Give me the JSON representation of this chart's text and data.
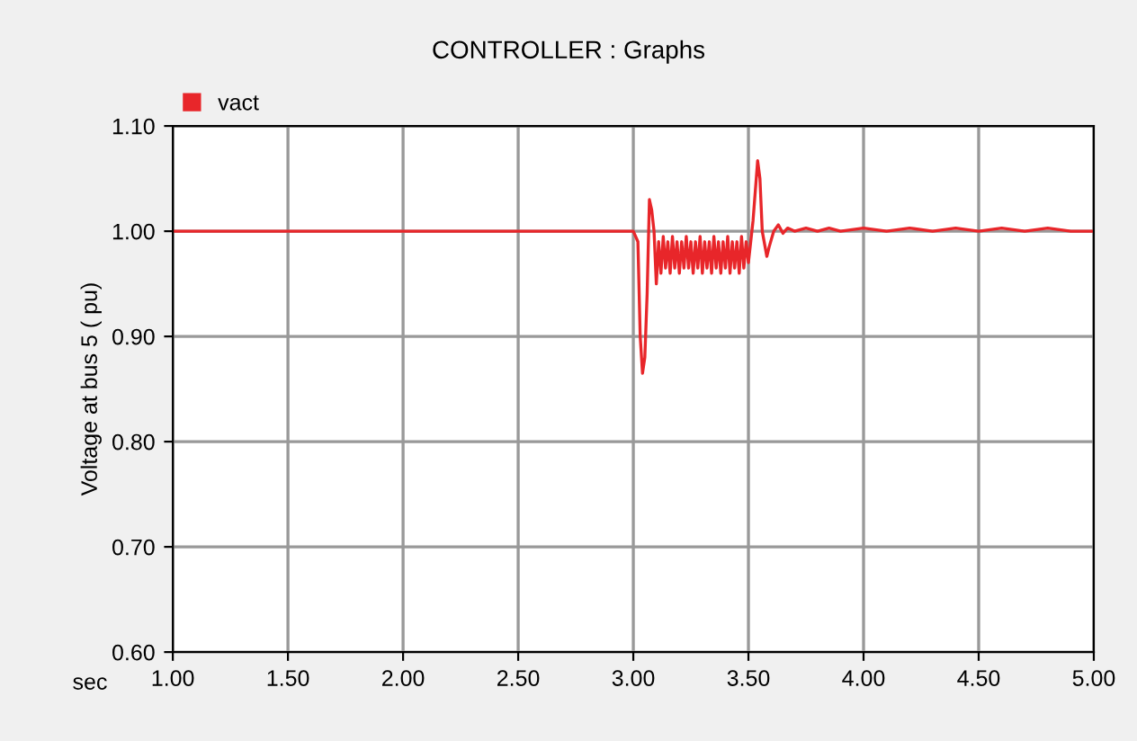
{
  "chart_data": {
    "type": "line",
    "title": "CONTROLLER : Graphs",
    "xlabel": "sec",
    "ylabel": "Voltage at bus 5 ( pu)",
    "xlim": [
      1.0,
      5.0
    ],
    "ylim": [
      0.6,
      1.1
    ],
    "xticks": [
      {
        "value": 1.0,
        "label": "1.00"
      },
      {
        "value": 1.5,
        "label": "1.50"
      },
      {
        "value": 2.0,
        "label": "2.00"
      },
      {
        "value": 2.5,
        "label": "2.50"
      },
      {
        "value": 3.0,
        "label": "3.00"
      },
      {
        "value": 3.5,
        "label": "3.50"
      },
      {
        "value": 4.0,
        "label": "4.00"
      },
      {
        "value": 4.5,
        "label": "4.50"
      },
      {
        "value": 5.0,
        "label": "5.00"
      }
    ],
    "yticks": [
      {
        "value": 0.6,
        "label": "0.60"
      },
      {
        "value": 0.7,
        "label": "0.70"
      },
      {
        "value": 0.8,
        "label": "0.80"
      },
      {
        "value": 0.9,
        "label": "0.90"
      },
      {
        "value": 1.0,
        "label": "1.00"
      },
      {
        "value": 1.1,
        "label": "1.10"
      }
    ],
    "grid": true,
    "legend": "top left",
    "series": [
      {
        "name": "vact",
        "color": "#e8262a",
        "x": [
          1.0,
          1.5,
          2.0,
          2.5,
          3.0,
          3.02,
          3.03,
          3.04,
          3.05,
          3.06,
          3.07,
          3.08,
          3.09,
          3.1,
          3.11,
          3.12,
          3.13,
          3.14,
          3.15,
          3.16,
          3.17,
          3.18,
          3.19,
          3.2,
          3.21,
          3.22,
          3.23,
          3.24,
          3.25,
          3.26,
          3.27,
          3.28,
          3.29,
          3.3,
          3.31,
          3.32,
          3.33,
          3.34,
          3.35,
          3.36,
          3.37,
          3.38,
          3.39,
          3.4,
          3.41,
          3.42,
          3.43,
          3.44,
          3.45,
          3.46,
          3.47,
          3.48,
          3.49,
          3.5,
          3.52,
          3.54,
          3.55,
          3.56,
          3.58,
          3.59,
          3.61,
          3.63,
          3.65,
          3.67,
          3.7,
          3.75,
          3.8,
          3.85,
          3.9,
          4.0,
          4.1,
          4.2,
          4.3,
          4.4,
          4.5,
          4.6,
          4.7,
          4.8,
          4.9,
          5.0
        ],
        "values": [
          1.0,
          1.0,
          1.0,
          1.0,
          1.0,
          0.99,
          0.9,
          0.865,
          0.88,
          0.94,
          1.03,
          1.02,
          1.0,
          0.95,
          0.99,
          0.96,
          0.995,
          0.965,
          0.99,
          0.96,
          0.995,
          0.965,
          0.99,
          0.96,
          0.99,
          0.965,
          0.995,
          0.965,
          0.99,
          0.96,
          0.99,
          0.965,
          0.995,
          0.96,
          0.99,
          0.965,
          0.99,
          0.96,
          0.995,
          0.965,
          0.99,
          0.96,
          0.99,
          0.965,
          0.995,
          0.96,
          0.99,
          0.965,
          0.99,
          0.96,
          0.995,
          0.965,
          0.99,
          0.97,
          1.01,
          1.067,
          1.05,
          1.0,
          0.976,
          0.985,
          1.0,
          1.006,
          0.998,
          1.003,
          1.0,
          1.003,
          1.0,
          1.003,
          1.0,
          1.003,
          1.0,
          1.003,
          1.0,
          1.003,
          1.0,
          1.003,
          1.0,
          1.003,
          1.0,
          1.0
        ]
      }
    ]
  }
}
